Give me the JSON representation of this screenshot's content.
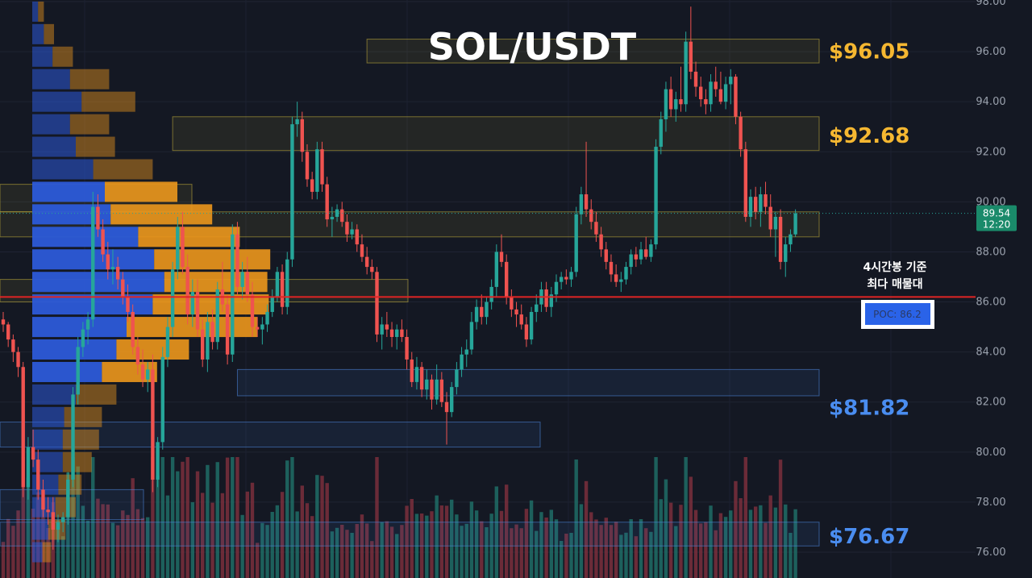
{
  "chart_data": {
    "type": "candlestick",
    "title": "SOL/USDT",
    "y_axis": {
      "ticks": [
        "98.00",
        "96.00",
        "94.00",
        "92.00",
        "90.00",
        "88.00",
        "86.00",
        "84.00",
        "82.00",
        "80.00",
        "78.00",
        "76.00"
      ],
      "range": [
        75.3,
        98.0
      ]
    },
    "last_price": {
      "value": "89.54",
      "countdown": "12:20"
    },
    "poc": {
      "value": 86.2,
      "label": "POC: 86.2"
    },
    "annotation": [
      "4시간봉 기준",
      "최다 매물대"
    ],
    "levels": [
      {
        "label": "$96.05",
        "color": "#f5b731"
      },
      {
        "label": "$92.68",
        "color": "#f5b731"
      },
      {
        "label": "$81.82",
        "color": "#4a8df0"
      },
      {
        "label": "$76.67",
        "color": "#4a8df0"
      }
    ],
    "zones": [
      {
        "low": 95.55,
        "high": 96.5,
        "color": "yellow",
        "extends_from_candle": 73
      },
      {
        "low": 92.05,
        "high": 93.4,
        "color": "yellow",
        "extends_from_candle": 34
      },
      {
        "low": 88.6,
        "high": 89.6,
        "color": "yellow",
        "extends_from_candle": 0
      },
      {
        "low": 82.25,
        "high": 83.3,
        "color": "blue",
        "extends_from_candle": 47
      },
      {
        "low": 76.25,
        "high": 77.2,
        "color": "blue",
        "extends_from_candle": 0
      },
      {
        "low": 89.6,
        "high": 90.7,
        "color": "yellow",
        "extends_from_candle": 0
      },
      {
        "low": 86.0,
        "high": 86.9,
        "color": "yellow",
        "extends_from_candle": 0
      },
      {
        "low": 80.2,
        "high": 81.2,
        "color": "blue",
        "extends_from_candle": 0
      },
      {
        "low": 77.3,
        "high": 78.5,
        "color": "blue",
        "extends_from_candle": 0
      }
    ],
    "volume_profile": {
      "bins": [
        97.6,
        96.7,
        95.8,
        94.9,
        94.0,
        93.1,
        92.2,
        91.3,
        90.4,
        89.5,
        88.6,
        87.7,
        86.8,
        85.9,
        85.0,
        84.1,
        83.2,
        82.3,
        81.4,
        80.5,
        79.6,
        78.7,
        77.8,
        76.9,
        76.0
      ],
      "buy": [
        0.4,
        0.8,
        1.4,
        2.6,
        3.4,
        2.6,
        3.0,
        4.2,
        5.0,
        5.4,
        7.3,
        8.4,
        9.1,
        8.3,
        6.5,
        5.8,
        4.8,
        3.0,
        2.2,
        2.1,
        2.1,
        1.8,
        1.6,
        1.1,
        0.7
      ],
      "sell": [
        0.4,
        0.7,
        1.4,
        2.7,
        3.7,
        2.7,
        2.7,
        4.1,
        5.0,
        7.0,
        7.0,
        8.0,
        7.1,
        8.0,
        9.0,
        5.0,
        3.8,
        2.8,
        2.6,
        2.5,
        2.0,
        1.6,
        1.4,
        1.2,
        0.6
      ]
    },
    "candles": [
      [
        85.3,
        85.6,
        84.8,
        85.1
      ],
      [
        85.1,
        85.2,
        84.2,
        84.5
      ],
      [
        84.5,
        84.7,
        83.6,
        84.0
      ],
      [
        84.0,
        84.2,
        83.0,
        83.4
      ],
      [
        83.4,
        83.6,
        78.2,
        78.6
      ],
      [
        78.6,
        80.6,
        78.1,
        80.2
      ],
      [
        80.2,
        80.9,
        79.4,
        79.7
      ],
      [
        79.7,
        80.1,
        78.1,
        78.5
      ],
      [
        78.5,
        78.9,
        77.4,
        77.7
      ],
      [
        77.7,
        78.2,
        77.1,
        77.6
      ],
      [
        77.6,
        78.2,
        76.1,
        76.9
      ],
      [
        76.9,
        77.5,
        76.4,
        77.2
      ],
      [
        77.2,
        77.6,
        76.8,
        77.4
      ],
      [
        77.4,
        79.2,
        77.1,
        78.9
      ],
      [
        78.9,
        82.6,
        78.6,
        82.3
      ],
      [
        82.3,
        84.6,
        81.9,
        84.2
      ],
      [
        84.2,
        85.2,
        83.8,
        84.9
      ],
      [
        84.9,
        85.6,
        84.3,
        85.3
      ],
      [
        85.3,
        90.4,
        85.0,
        89.8
      ],
      [
        89.8,
        90.3,
        88.6,
        88.9
      ],
      [
        88.9,
        89.3,
        87.6,
        87.9
      ],
      [
        87.9,
        88.4,
        86.9,
        87.3
      ],
      [
        87.3,
        88.1,
        86.7,
        87.4
      ],
      [
        87.4,
        87.8,
        86.5,
        86.9
      ],
      [
        86.9,
        87.2,
        85.9,
        86.2
      ],
      [
        86.2,
        86.7,
        85.2,
        85.6
      ],
      [
        85.6,
        85.9,
        83.9,
        84.2
      ],
      [
        84.2,
        84.6,
        83.1,
        83.5
      ],
      [
        83.5,
        84.1,
        82.6,
        82.9
      ],
      [
        82.9,
        83.6,
        82.4,
        83.3
      ],
      [
        83.3,
        83.9,
        78.4,
        78.9
      ],
      [
        78.9,
        80.6,
        78.6,
        80.4
      ],
      [
        80.4,
        84.2,
        80.1,
        83.8
      ],
      [
        83.8,
        85.4,
        83.4,
        85.0
      ],
      [
        85.0,
        87.6,
        84.6,
        87.3
      ],
      [
        87.3,
        89.4,
        86.9,
        89.0
      ],
      [
        89.0,
        89.6,
        87.1,
        87.4
      ],
      [
        87.4,
        87.9,
        85.1,
        85.5
      ],
      [
        85.5,
        86.9,
        85.0,
        86.4
      ],
      [
        86.4,
        86.9,
        84.6,
        84.9
      ],
      [
        84.9,
        85.3,
        83.4,
        83.7
      ],
      [
        83.7,
        85.6,
        83.2,
        85.2
      ],
      [
        85.2,
        85.7,
        84.1,
        84.4
      ],
      [
        84.4,
        86.8,
        84.1,
        86.5
      ],
      [
        86.5,
        87.6,
        85.6,
        85.9
      ],
      [
        85.9,
        86.3,
        83.5,
        83.9
      ],
      [
        83.9,
        89.1,
        83.6,
        88.7
      ],
      [
        88.7,
        89.2,
        86.3,
        86.6
      ],
      [
        86.6,
        87.6,
        86.1,
        87.2
      ],
      [
        87.2,
        87.8,
        86.0,
        86.3
      ],
      [
        86.3,
        86.8,
        84.6,
        85.0
      ],
      [
        85.0,
        85.4,
        84.6,
        84.9
      ],
      [
        84.9,
        85.4,
        84.3,
        85.1
      ],
      [
        85.1,
        85.9,
        84.8,
        85.6
      ],
      [
        85.6,
        86.5,
        85.4,
        86.2
      ],
      [
        86.2,
        87.4,
        86.0,
        87.2
      ],
      [
        87.2,
        87.5,
        85.5,
        85.8
      ],
      [
        85.8,
        88.0,
        85.5,
        87.7
      ],
      [
        87.7,
        93.4,
        87.4,
        93.1
      ],
      [
        93.1,
        94.0,
        92.6,
        93.3
      ],
      [
        93.3,
        93.6,
        91.6,
        92.0
      ],
      [
        92.0,
        92.3,
        90.6,
        90.9
      ],
      [
        90.9,
        91.2,
        90.1,
        90.4
      ],
      [
        90.4,
        92.4,
        90.1,
        92.1
      ],
      [
        92.1,
        92.4,
        90.4,
        90.7
      ],
      [
        90.7,
        91.0,
        89.0,
        89.3
      ],
      [
        89.3,
        89.8,
        88.6,
        89.4
      ],
      [
        89.4,
        89.9,
        89.2,
        89.7
      ],
      [
        89.7,
        90.0,
        89.0,
        89.2
      ],
      [
        89.2,
        89.5,
        88.4,
        88.7
      ],
      [
        88.7,
        89.2,
        88.5,
        88.9
      ],
      [
        88.9,
        89.1,
        88.0,
        88.3
      ],
      [
        88.3,
        88.7,
        87.6,
        87.8
      ],
      [
        87.8,
        88.2,
        87.1,
        87.4
      ],
      [
        87.4,
        87.7,
        86.9,
        87.2
      ],
      [
        87.2,
        87.4,
        84.4,
        84.7
      ],
      [
        84.7,
        85.4,
        84.1,
        85.1
      ],
      [
        85.1,
        85.6,
        84.6,
        84.9
      ],
      [
        84.9,
        85.2,
        84.2,
        84.6
      ],
      [
        84.6,
        85.1,
        84.1,
        84.9
      ],
      [
        84.9,
        85.3,
        84.4,
        84.6
      ],
      [
        84.6,
        84.9,
        83.3,
        83.7
      ],
      [
        83.7,
        84.0,
        82.6,
        82.8
      ],
      [
        82.8,
        83.8,
        82.5,
        83.4
      ],
      [
        83.4,
        83.6,
        82.2,
        82.5
      ],
      [
        82.5,
        83.3,
        82.1,
        82.9
      ],
      [
        82.9,
        83.1,
        81.7,
        82.1
      ],
      [
        82.1,
        83.5,
        81.9,
        82.9
      ],
      [
        82.9,
        83.2,
        81.8,
        82.0
      ],
      [
        82.0,
        82.4,
        80.3,
        81.6
      ],
      [
        81.6,
        82.8,
        81.4,
        82.6
      ],
      [
        82.6,
        83.6,
        82.3,
        83.3
      ],
      [
        83.3,
        84.2,
        83.0,
        83.9
      ],
      [
        83.9,
        84.5,
        83.4,
        84.1
      ],
      [
        84.1,
        85.6,
        83.9,
        85.2
      ],
      [
        85.2,
        86.1,
        84.9,
        85.8
      ],
      [
        85.8,
        86.3,
        85.1,
        85.4
      ],
      [
        85.4,
        86.2,
        85.1,
        86.0
      ],
      [
        86.0,
        86.9,
        85.7,
        86.6
      ],
      [
        86.6,
        88.3,
        86.2,
        88.0
      ],
      [
        88.0,
        88.7,
        87.4,
        87.6
      ],
      [
        87.6,
        87.9,
        85.9,
        86.2
      ],
      [
        86.2,
        86.5,
        85.4,
        85.7
      ],
      [
        85.7,
        86.0,
        85.0,
        85.5
      ],
      [
        85.5,
        85.9,
        84.9,
        85.1
      ],
      [
        85.1,
        85.4,
        84.2,
        84.5
      ],
      [
        84.5,
        85.8,
        84.3,
        85.6
      ],
      [
        85.6,
        86.3,
        85.2,
        85.9
      ],
      [
        85.9,
        86.8,
        85.6,
        86.5
      ],
      [
        86.5,
        86.8,
        85.6,
        85.8
      ],
      [
        85.8,
        86.6,
        85.4,
        86.3
      ],
      [
        86.3,
        87.1,
        86.0,
        86.8
      ],
      [
        86.8,
        87.2,
        86.5,
        87.0
      ],
      [
        87.0,
        87.3,
        86.7,
        86.9
      ],
      [
        86.9,
        87.4,
        86.6,
        87.2
      ],
      [
        87.2,
        89.8,
        87.0,
        89.5
      ],
      [
        89.5,
        90.6,
        89.1,
        90.3
      ],
      [
        90.3,
        92.4,
        89.4,
        89.7
      ],
      [
        89.7,
        90.1,
        88.9,
        89.2
      ],
      [
        89.2,
        89.6,
        88.4,
        88.7
      ],
      [
        88.7,
        89.0,
        87.8,
        88.1
      ],
      [
        88.1,
        88.4,
        87.3,
        87.6
      ],
      [
        87.6,
        87.9,
        86.8,
        87.1
      ],
      [
        87.1,
        87.5,
        86.6,
        86.8
      ],
      [
        86.8,
        87.2,
        86.4,
        86.9
      ],
      [
        86.9,
        87.6,
        86.7,
        87.4
      ],
      [
        87.4,
        88.1,
        87.1,
        87.9
      ],
      [
        87.9,
        88.2,
        87.4,
        87.7
      ],
      [
        87.7,
        88.4,
        87.5,
        88.1
      ],
      [
        88.1,
        88.6,
        87.7,
        87.8
      ],
      [
        87.8,
        88.5,
        87.6,
        88.3
      ],
      [
        88.3,
        92.5,
        88.1,
        92.2
      ],
      [
        92.2,
        93.6,
        91.9,
        93.3
      ],
      [
        93.3,
        94.8,
        92.8,
        94.5
      ],
      [
        94.5,
        95.0,
        93.4,
        93.7
      ],
      [
        93.7,
        94.4,
        93.2,
        94.1
      ],
      [
        94.1,
        95.4,
        93.6,
        93.9
      ],
      [
        93.9,
        96.8,
        93.6,
        96.4
      ],
      [
        96.4,
        97.8,
        94.9,
        95.2
      ],
      [
        95.2,
        95.6,
        94.2,
        94.6
      ],
      [
        94.6,
        95.0,
        93.8,
        94.1
      ],
      [
        94.1,
        94.5,
        93.5,
        93.9
      ],
      [
        93.9,
        95.1,
        93.6,
        94.8
      ],
      [
        94.8,
        95.4,
        94.2,
        94.5
      ],
      [
        94.5,
        95.2,
        93.9,
        94.0
      ],
      [
        94.0,
        95.0,
        93.7,
        94.7
      ],
      [
        94.7,
        95.3,
        93.9,
        95.0
      ],
      [
        95.0,
        95.1,
        93.1,
        93.4
      ],
      [
        93.4,
        93.6,
        91.8,
        92.1
      ],
      [
        92.1,
        92.4,
        89.2,
        89.4
      ],
      [
        89.4,
        90.5,
        89.0,
        90.2
      ],
      [
        90.2,
        90.6,
        89.3,
        89.6
      ],
      [
        89.6,
        90.6,
        89.0,
        90.3
      ],
      [
        90.3,
        90.8,
        89.5,
        89.8
      ],
      [
        89.8,
        90.3,
        88.6,
        88.9
      ],
      [
        88.9,
        89.6,
        87.8,
        89.4
      ],
      [
        89.4,
        89.7,
        87.3,
        87.6
      ],
      [
        87.6,
        88.6,
        87.0,
        88.3
      ],
      [
        88.3,
        88.9,
        88.0,
        88.7
      ],
      [
        88.7,
        89.7,
        88.6,
        89.54
      ]
    ]
  }
}
